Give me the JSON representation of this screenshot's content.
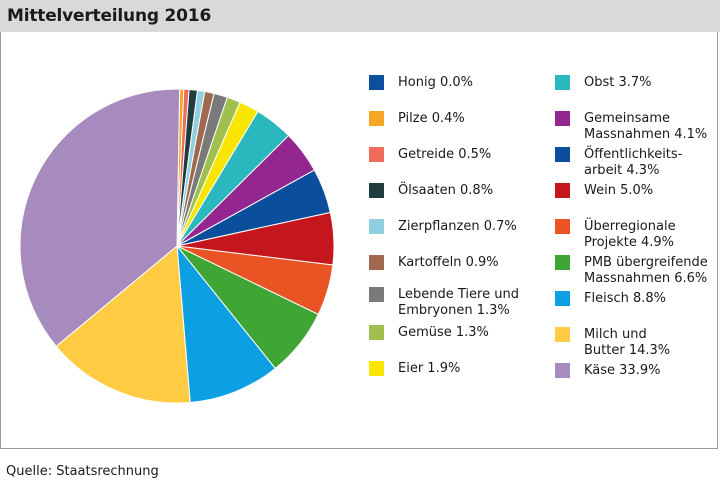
{
  "title": "Mittelverteilung 2016",
  "source": "Quelle: Staatsrechnung",
  "chart_data": {
    "type": "pie",
    "title": "Mittelverteilung 2016",
    "unit": "%",
    "start": "top",
    "direction": "clockwise",
    "slices": [
      {
        "label": "Honig",
        "display": "Honig 0.0%",
        "value": 0.0,
        "color": "#0d4f9e"
      },
      {
        "label": "Pilze",
        "display": "Pilze 0.4%",
        "value": 0.4,
        "color": "#f5a623"
      },
      {
        "label": "Getreide",
        "display": "Getreide 0.5%",
        "value": 0.5,
        "color": "#ef6b5a"
      },
      {
        "label": "Ölsaaten",
        "display": "Ölsaaten 0.8%",
        "value": 0.8,
        "color": "#1f3d3e"
      },
      {
        "label": "Zierpflanzen",
        "display": "Zierpflanzen 0.7%",
        "value": 0.7,
        "color": "#8fcfe0"
      },
      {
        "label": "Kartoffeln",
        "display": "Kartoffeln 0.9%",
        "value": 0.9,
        "color": "#a0684c"
      },
      {
        "label": "Lebende Tiere und Embryonen",
        "display": "Lebende Tiere und\nEmbryonen 1.3%",
        "value": 1.3,
        "color": "#7a7a7a"
      },
      {
        "label": "Gemüse",
        "display": "Gemüse 1.3%",
        "value": 1.3,
        "color": "#9fbf4e"
      },
      {
        "label": "Eier",
        "display": "Eier 1.9%",
        "value": 1.9,
        "color": "#f8e600"
      },
      {
        "label": "Obst",
        "display": "Obst 3.7%",
        "value": 3.7,
        "color": "#2ab7bd"
      },
      {
        "label": "Gemeinsame Massnahmen",
        "display": "Gemeinsame\nMassnahmen 4.1%",
        "value": 4.1,
        "color": "#93268f"
      },
      {
        "label": "Öffentlichkeitsarbeit",
        "display": "Öffentlichkeits-\narbeit 4.3%",
        "value": 4.3,
        "color": "#0b4f9c"
      },
      {
        "label": "Wein",
        "display": "Wein 5.0%",
        "value": 5.0,
        "color": "#c4161c"
      },
      {
        "label": "Überregionale Projekte",
        "display": "Überregionale\nProjekte 4.9%",
        "value": 4.9,
        "color": "#ea5424"
      },
      {
        "label": "PMB übergreifende Massnahmen",
        "display": "PMB übergreifende\nMassnahmen 6.6%",
        "value": 6.6,
        "color": "#3fa535"
      },
      {
        "label": "Fleisch",
        "display": "Fleisch 8.8%",
        "value": 8.8,
        "color": "#0ca0e3"
      },
      {
        "label": "Milch und Butter",
        "display": "Milch und\nButter 14.3%",
        "value": 14.3,
        "color": "#ffcc44"
      },
      {
        "label": "Käse",
        "display": "Käse 33.9%",
        "value": 33.9,
        "color": "#a78bbf"
      }
    ]
  }
}
